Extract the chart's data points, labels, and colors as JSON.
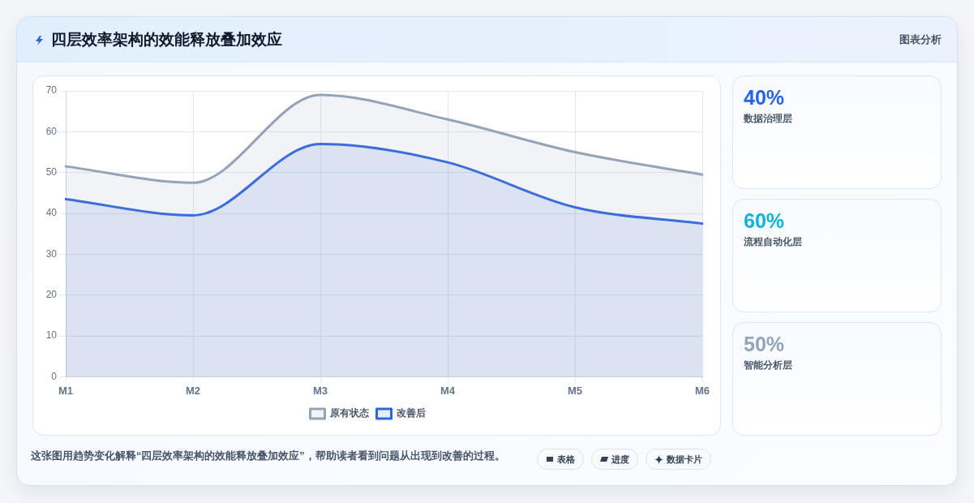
{
  "chart_data": [
    {
      "type": "area",
      "title": "四层效率架构的效能释放叠加效应",
      "categories": [
        "M1",
        "M2",
        "M3",
        "M4",
        "M5",
        "M6"
      ],
      "series": [
        {
          "name": "原有状态",
          "color": "#94a3b8",
          "values": [
            51.5,
            47.5,
            69,
            63,
            55,
            49.5
          ]
        },
        {
          "name": "改善后",
          "color": "#2f66e0",
          "values": [
            43.5,
            39.5,
            57,
            52.5,
            41.5,
            37.5
          ]
        }
      ],
      "ylim": [
        0,
        70
      ],
      "yticks": [
        0,
        10,
        20,
        30,
        40,
        50,
        60,
        70
      ],
      "grid": true,
      "legend": "bottom",
      "annotations": [
        "图表分析",
        "这张图用趋势变化解释“四层效率架构的效能释放叠加效应”，帮助读者看到问题从出现到改善的过程。",
        "表格",
        "进度",
        "数据卡片"
      ]
    },
    {
      "type": "other",
      "annotations": [
        "40%",
        "数据治理层",
        "60%",
        "流程自动化层",
        "50%",
        "智能分析层"
      ]
    }
  ]
}
